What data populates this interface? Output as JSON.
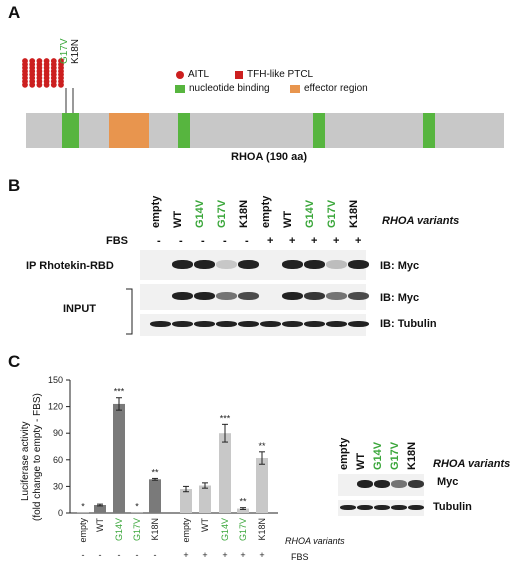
{
  "colors": {
    "aitl": "#cc1f1f",
    "tfh": "#cc1f1f",
    "nucleotide_binding": "#57b53f",
    "effector_region": "#e8954e",
    "protein_bar": "#c8c8c8",
    "green_text": "#3aa63a",
    "bar_dark": "#7a7a7a",
    "bar_light": "#c8c8c8"
  },
  "panel_a": {
    "letter": "A",
    "mutation_labels": [
      "G17V",
      "K18N"
    ],
    "legend": {
      "aitl": "AITL",
      "tfh": "TFH-like PTCL",
      "nucleotide": "nucleotide binding",
      "effector": "effector region"
    },
    "protein_label": "RHOA (190 aa)"
  },
  "panel_b": {
    "letter": "B",
    "lanes": [
      "empty",
      "WT",
      "G14V",
      "G17V",
      "K18N",
      "empty",
      "WT",
      "G14V",
      "G17V",
      "K18N"
    ],
    "fbs_label": "FBS",
    "fbs": [
      "-",
      "-",
      "-",
      "-",
      "-",
      "+",
      "+",
      "+",
      "+",
      "+"
    ],
    "variants_title": "RHOA variants",
    "ip_label": "IP Rhotekin-RBD",
    "input_label": "INPUT",
    "ib_myc_ip": "IB: Myc",
    "ib_myc_input": "IB: Myc",
    "ib_tubulin": "IB: Tubulin"
  },
  "panel_c": {
    "letter": "C",
    "ylabel_1": "Luciferase activity",
    "ylabel_2": "(fold change to empty - FBS)",
    "variants_label": "RHOA variants",
    "fbs_label": "FBS",
    "fbs": [
      "-",
      "-",
      "-",
      "-",
      "-",
      "+",
      "+",
      "+",
      "+",
      "+"
    ],
    "blot_lanes": [
      "empty",
      "WT",
      "G14V",
      "G17V",
      "K18N"
    ],
    "blot_variants_title": "RHOA variants",
    "blot_myc": "Myc",
    "blot_tubulin": "Tubulin"
  },
  "chart_data": {
    "type": "bar",
    "categories": [
      "empty",
      "WT",
      "G14V",
      "G17V",
      "K18N",
      "empty",
      "WT",
      "G14V",
      "G17V",
      "K18N"
    ],
    "values": [
      0.5,
      9,
      123,
      0.5,
      38,
      27,
      31,
      90,
      5,
      62
    ],
    "errors": [
      0.3,
      1,
      7,
      0.3,
      1,
      3,
      3,
      10,
      1,
      7
    ],
    "significance": [
      "*",
      "",
      "***",
      "*",
      "**",
      "",
      "",
      "***",
      "**",
      "**"
    ],
    "fbs": [
      "-",
      "-",
      "-",
      "-",
      "-",
      "+",
      "+",
      "+",
      "+",
      "+"
    ],
    "ylim": [
      0,
      150
    ],
    "yticks": [
      0,
      30,
      60,
      90,
      120,
      150
    ],
    "ylabel": "Luciferase activity (fold change to empty - FBS)"
  }
}
